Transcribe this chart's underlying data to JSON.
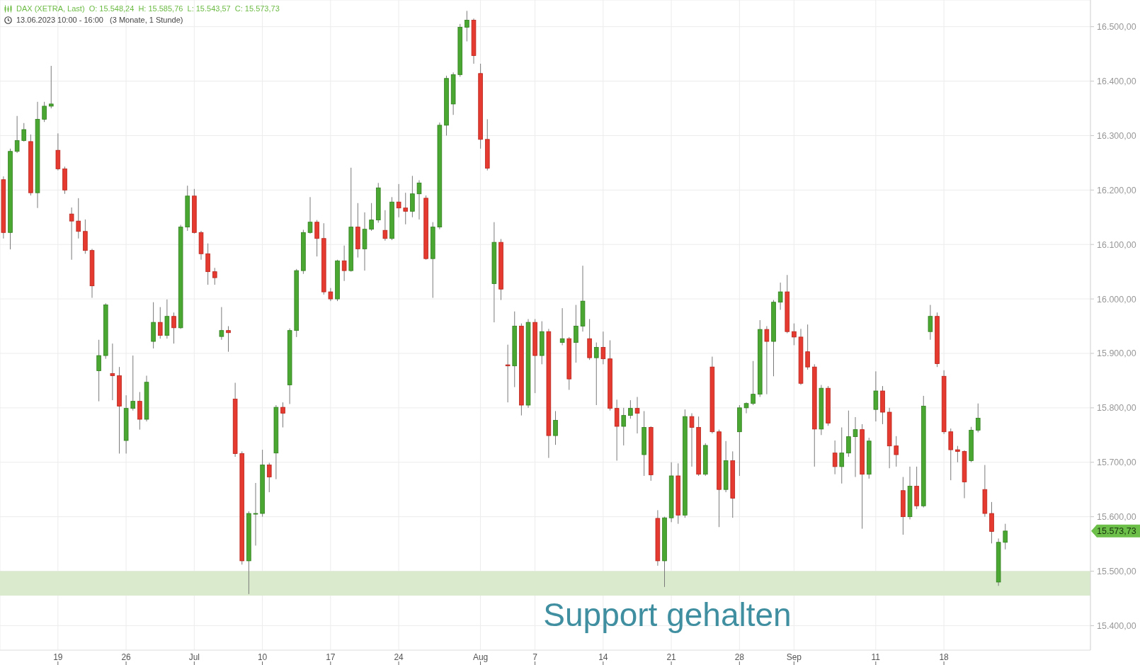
{
  "chart_data": {
    "type": "candlestick",
    "title": "DAX (XETRA, Last)  O: 15.548,24  H: 15.585,76  L: 15.543,57  C: 15.573,73",
    "subtitle": "13.06.2023 10:00 - 16:00   (3 Monate, 1 Stunde)",
    "categories": [
      null,
      null,
      null,
      null,
      null,
      null,
      null,
      null,
      "19",
      null,
      null,
      null,
      null,
      null,
      null,
      null,
      null,
      null,
      "26",
      null,
      null,
      null,
      null,
      null,
      null,
      null,
      null,
      null,
      "Jul",
      null,
      null,
      null,
      null,
      null,
      null,
      null,
      null,
      null,
      "10",
      null,
      null,
      null,
      null,
      null,
      null,
      null,
      null,
      null,
      "17",
      null,
      null,
      null,
      null,
      null,
      null,
      null,
      null,
      null,
      "24",
      null,
      null,
      null,
      null,
      null,
      null,
      null,
      null,
      null,
      null,
      null,
      "Aug",
      null,
      null,
      null,
      null,
      null,
      null,
      null,
      "7",
      null,
      null,
      null,
      null,
      null,
      null,
      null,
      null,
      null,
      "14",
      null,
      null,
      null,
      null,
      null,
      null,
      null,
      null,
      null,
      "21",
      null,
      null,
      null,
      null,
      null,
      null,
      null,
      null,
      null,
      "28",
      null,
      null,
      null,
      null,
      null,
      null,
      null,
      "Sep",
      null,
      null,
      null,
      null,
      null,
      null,
      null,
      null,
      null,
      null,
      null,
      "11",
      null,
      null,
      null,
      null,
      null,
      null,
      null,
      null,
      null,
      "18",
      null,
      null,
      null,
      null,
      null,
      null,
      null,
      null,
      null,
      null,
      null,
      null,
      null,
      null,
      null,
      null,
      null,
      null,
      null,
      null,
      null
    ],
    "ohlc": [
      [
        16219,
        16225,
        16111,
        16122
      ],
      [
        16122,
        16276,
        16091,
        16271
      ],
      [
        16271,
        16336,
        16268,
        16291
      ],
      [
        16291,
        16323,
        16289,
        16311
      ],
      [
        16289,
        16302,
        16190,
        16195
      ],
      [
        16195,
        16362,
        16167,
        16330
      ],
      [
        16330,
        16362,
        16325,
        16354
      ],
      [
        16354,
        16428,
        16350,
        16358
      ],
      [
        16273,
        16304,
        16236,
        16239
      ],
      [
        16239,
        16243,
        16193,
        16200
      ],
      [
        16156,
        16168,
        16072,
        16143
      ],
      [
        16143,
        16185,
        16111,
        16124
      ],
      [
        16124,
        16146,
        16083,
        16089
      ],
      [
        16089,
        16092,
        16002,
        16024
      ],
      [
        15868,
        15925,
        15812,
        15896
      ],
      [
        15896,
        15992,
        15890,
        15989
      ],
      [
        15863,
        15918,
        15814,
        15859
      ],
      [
        15859,
        15875,
        15716,
        15803
      ],
      [
        15740,
        15823,
        15716,
        15799
      ],
      [
        15799,
        15896,
        15795,
        15812
      ],
      [
        15812,
        15829,
        15760,
        15779
      ],
      [
        15779,
        15859,
        15775,
        15847
      ],
      [
        15922,
        15994,
        15909,
        15957
      ],
      [
        15957,
        15985,
        15927,
        15933
      ],
      [
        15933,
        15999,
        15927,
        15968
      ],
      [
        15968,
        15975,
        15918,
        15947
      ],
      [
        15947,
        16136,
        15945,
        16132
      ],
      [
        16132,
        16208,
        16125,
        16189
      ],
      [
        16189,
        16202,
        16120,
        16122
      ],
      [
        16122,
        16125,
        16072,
        16083
      ],
      [
        16083,
        16102,
        16026,
        16050
      ],
      [
        16050,
        16057,
        16026,
        16039
      ],
      [
        15931,
        15985,
        15925,
        15942
      ],
      [
        15942,
        15950,
        15903,
        15938
      ],
      [
        15816,
        15846,
        15710,
        15716
      ],
      [
        15716,
        15720,
        15512,
        15519
      ],
      [
        15519,
        15610,
        15458,
        15606
      ],
      [
        15606,
        15662,
        15547,
        15606
      ],
      [
        15606,
        15723,
        15600,
        15695
      ],
      [
        15695,
        15699,
        15645,
        15673
      ],
      [
        15717,
        15805,
        15669,
        15801
      ],
      [
        15801,
        15810,
        15764,
        15790
      ],
      [
        15842,
        15946,
        15807,
        15942
      ],
      [
        15942,
        16055,
        15930,
        16052
      ],
      [
        16052,
        16127,
        16046,
        16122
      ],
      [
        16122,
        16187,
        16120,
        16141
      ],
      [
        16141,
        16145,
        16078,
        16111
      ],
      [
        16111,
        16139,
        16008,
        16013
      ],
      [
        16013,
        16020,
        15996,
        16000
      ],
      [
        16000,
        16072,
        15996,
        16070
      ],
      [
        16070,
        16098,
        16033,
        16052
      ],
      [
        16052,
        16241,
        16050,
        16132
      ],
      [
        16132,
        16176,
        16076,
        16092
      ],
      [
        16092,
        16159,
        16052,
        16128
      ],
      [
        16128,
        16176,
        16125,
        16145
      ],
      [
        16145,
        16213,
        16140,
        16204
      ],
      [
        16126,
        16163,
        16107,
        16111
      ],
      [
        16111,
        16187,
        16108,
        16178
      ],
      [
        16178,
        16211,
        16150,
        16167
      ],
      [
        16167,
        16195,
        16137,
        16161
      ],
      [
        16161,
        16226,
        16150,
        16193
      ],
      [
        16193,
        16218,
        16146,
        16213
      ],
      [
        16185,
        16190,
        16072,
        16074
      ],
      [
        16074,
        16141,
        16002,
        16132
      ],
      [
        16132,
        16324,
        16128,
        16319
      ],
      [
        16319,
        16410,
        16300,
        16405
      ],
      [
        16358,
        16416,
        16338,
        16412
      ],
      [
        16412,
        16505,
        16408,
        16499
      ],
      [
        16499,
        16529,
        16473,
        16512
      ],
      [
        16512,
        16515,
        16432,
        16447
      ],
      [
        16414,
        16432,
        16276,
        16293
      ],
      [
        16293,
        16330,
        16236,
        16240
      ],
      [
        16028,
        16141,
        15957,
        16104
      ],
      [
        16104,
        16110,
        15998,
        16018
      ],
      [
        15879,
        15916,
        15810,
        15877
      ],
      [
        15877,
        15977,
        15838,
        15950
      ],
      [
        15950,
        15955,
        15786,
        15805
      ],
      [
        15805,
        15963,
        15800,
        15957
      ],
      [
        15957,
        15963,
        15827,
        15896
      ],
      [
        15896,
        15959,
        15880,
        15940
      ],
      [
        15940,
        15945,
        15708,
        15749
      ],
      [
        15749,
        15794,
        15732,
        15777
      ],
      [
        15920,
        15983,
        15915,
        15927
      ],
      [
        15927,
        15930,
        15833,
        15853
      ],
      [
        15920,
        15989,
        15883,
        15950
      ],
      [
        15950,
        16061,
        15940,
        15996
      ],
      [
        15927,
        15963,
        15888,
        15892
      ],
      [
        15892,
        15920,
        15805,
        15911
      ],
      [
        15911,
        15940,
        15880,
        15890
      ],
      [
        15890,
        15924,
        15795,
        15799
      ],
      [
        15799,
        15815,
        15703,
        15766
      ],
      [
        15766,
        15800,
        15731,
        15786
      ],
      [
        15786,
        15814,
        15780,
        15799
      ],
      [
        15799,
        15820,
        15753,
        15790
      ],
      [
        15714,
        15794,
        15675,
        15764
      ],
      [
        15764,
        15766,
        15666,
        15677
      ],
      [
        15597,
        15612,
        15510,
        15519
      ],
      [
        15519,
        15600,
        15471,
        15598
      ],
      [
        15598,
        15700,
        15590,
        15675
      ],
      [
        15675,
        15698,
        15587,
        15603
      ],
      [
        15603,
        15797,
        15598,
        15784
      ],
      [
        15784,
        15790,
        15692,
        15764
      ],
      [
        15764,
        15784,
        15675,
        15678
      ],
      [
        15678,
        15735,
        15675,
        15731
      ],
      [
        15875,
        15894,
        15753,
        15756
      ],
      [
        15756,
        15760,
        15581,
        15650
      ],
      [
        15650,
        15739,
        15645,
        15703
      ],
      [
        15703,
        15720,
        15598,
        15634
      ],
      [
        15756,
        15805,
        15675,
        15800
      ],
      [
        15800,
        15810,
        15790,
        15808
      ],
      [
        15808,
        15886,
        15805,
        15825
      ],
      [
        15825,
        15961,
        15820,
        15944
      ],
      [
        15944,
        15950,
        15825,
        15922
      ],
      [
        15922,
        15998,
        15858,
        15994
      ],
      [
        15994,
        16030,
        15980,
        16013
      ],
      [
        16013,
        16044,
        15937,
        15940
      ],
      [
        15940,
        15955,
        15915,
        15930
      ],
      [
        15930,
        15945,
        15842,
        15845
      ],
      [
        15903,
        15953,
        15870,
        15875
      ],
      [
        15875,
        15880,
        15692,
        15761
      ],
      [
        15761,
        15842,
        15750,
        15836
      ],
      [
        15836,
        15840,
        15767,
        15772
      ],
      [
        15717,
        15740,
        15678,
        15692
      ],
      [
        15692,
        15764,
        15661,
        15717
      ],
      [
        15717,
        15795,
        15710,
        15747
      ],
      [
        15747,
        15783,
        15673,
        15760
      ],
      [
        15760,
        15770,
        15578,
        15678
      ],
      [
        15678,
        15745,
        15670,
        15739
      ],
      [
        15797,
        15867,
        15775,
        15831
      ],
      [
        15831,
        15840,
        15770,
        15792
      ],
      [
        15792,
        15800,
        15689,
        15730
      ],
      [
        15730,
        15748,
        15692,
        15714
      ],
      [
        15648,
        15673,
        15567,
        15600
      ],
      [
        15600,
        15692,
        15595,
        15656
      ],
      [
        15656,
        15692,
        15614,
        15620
      ],
      [
        15620,
        15822,
        15617,
        15803
      ],
      [
        15940,
        15989,
        15925,
        15968
      ],
      [
        15968,
        15975,
        15875,
        15881
      ],
      [
        15858,
        15869,
        15752,
        15756
      ],
      [
        15756,
        15762,
        15667,
        15723
      ],
      [
        15723,
        15730,
        15700,
        15720
      ],
      [
        15720,
        15722,
        15634,
        15664
      ],
      [
        15703,
        15765,
        15700,
        15759
      ],
      [
        15759,
        15808,
        15755,
        15781
      ],
      [
        15650,
        15695,
        15600,
        15606
      ],
      [
        15606,
        15627,
        15551,
        15573
      ],
      [
        15480,
        15560,
        15473,
        15553
      ],
      [
        15553,
        15587,
        15540,
        15573.73
      ],
      null,
      null,
      null,
      null,
      null,
      null,
      null,
      null,
      null,
      null,
      null,
      null
    ],
    "ylim": [
      15355,
      16549
    ],
    "yticks": [
      {
        "value": 15400,
        "label": "15.400,00"
      },
      {
        "value": 15500,
        "label": "15.500,00"
      },
      {
        "value": 15600,
        "label": "15.600,00"
      },
      {
        "value": 15700,
        "label": "15.700,00"
      },
      {
        "value": 15800,
        "label": "15.800,00"
      },
      {
        "value": 15900,
        "label": "15.900,00"
      },
      {
        "value": 16000,
        "label": "16.000,00"
      },
      {
        "value": 16100,
        "label": "16.100,00"
      },
      {
        "value": 16200,
        "label": "16.200,00"
      },
      {
        "value": 16300,
        "label": "16.300,00"
      },
      {
        "value": 16400,
        "label": "16.400,00"
      },
      {
        "value": 16500,
        "label": "16.500,00"
      }
    ],
    "grid": true,
    "bands": [
      {
        "axis": "y",
        "from": 15455,
        "to": 15500,
        "label": "Support gehalten",
        "color": "#d9ebcc"
      }
    ],
    "annotations": [
      "15.573,73"
    ]
  }
}
